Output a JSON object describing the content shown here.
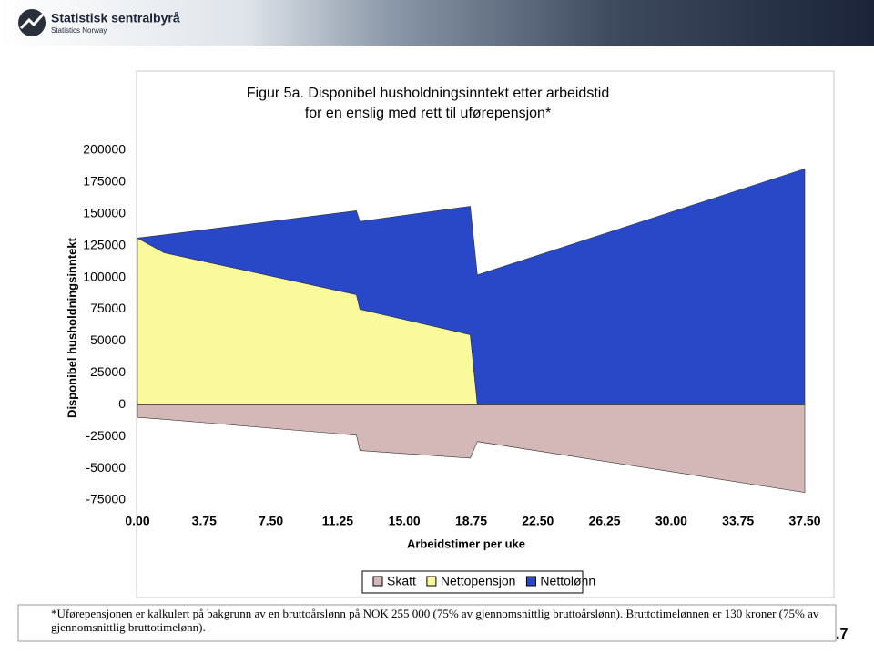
{
  "header": {
    "org": "Statistisk sentralbyrå",
    "org_en": "Statistics Norway"
  },
  "chart_data": {
    "type": "stacked-area",
    "title": "Figur 5a. Disponibel husholdningsinntekt etter arbeidstid",
    "subtitle": "for en enslig med rett til uførepensjon*",
    "x_label": "Arbeidstimer per uke",
    "y_label": "Disponibel husholdningsinntekt",
    "x": [
      0,
      1.5,
      12.3,
      12.5,
      18.7,
      19.1,
      37.5
    ],
    "series": [
      {
        "name": "Skatt",
        "color": "#d4b8b8",
        "values": [
          -10000,
          -11500,
          -24000,
          -36000,
          -42000,
          -29000,
          -69000
        ]
      },
      {
        "name": "Nettopensjon",
        "color": "#fafa9c",
        "values": [
          131000,
          119500,
          86500,
          75000,
          55000,
          0,
          0
        ]
      },
      {
        "name": "Nettolønn",
        "color": "#2848c8",
        "values": [
          0,
          14000,
          66000,
          69000,
          101000,
          102000,
          185500
        ]
      }
    ],
    "xlim": [
      0,
      37.5
    ],
    "xticks": [
      {
        "value": 0,
        "label": "0.00"
      },
      3.75,
      {
        "value": 7.5,
        "label": "7.50"
      },
      11.25,
      {
        "value": 15,
        "label": "15.00"
      },
      18.75,
      {
        "value": 22.5,
        "label": "22.50"
      },
      26.25,
      {
        "value": 30,
        "label": "30.00"
      },
      33.75,
      {
        "value": 37.5,
        "label": "37.50"
      }
    ],
    "ylim": [
      -75000,
      200000
    ],
    "yticks": [
      200000,
      175000,
      150000,
      125000,
      100000,
      75000,
      50000,
      25000,
      0,
      -25000,
      -50000,
      -75000
    ],
    "legend": "bottom"
  },
  "footnote": "*Uførepensjonen er kalkulert på bakgrunn av en bruttoårslønn på NOK 255 000 (75% av gjennomsnittlig bruttoårslønn). Bruttotimelønnen er 130 kroner (75% av gjennomsnittlig bruttotimelønn).",
  "page_number": ".7"
}
